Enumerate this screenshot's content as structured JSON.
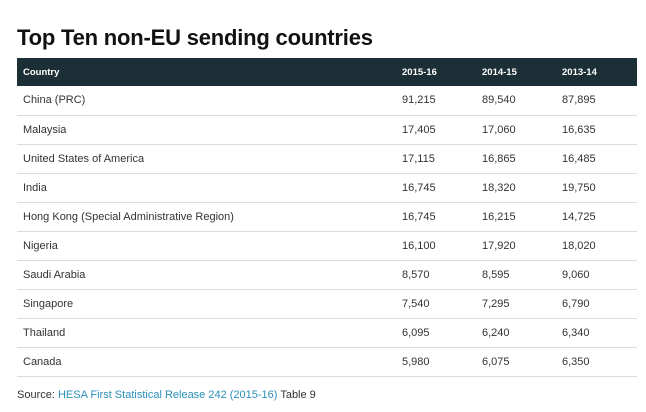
{
  "title": "Top Ten non-EU sending countries",
  "table": {
    "headers": [
      "Country",
      "2015-16",
      "2014-15",
      "2013-14"
    ],
    "rows": [
      [
        "China (PRC)",
        "91,215",
        "89,540",
        "87,895"
      ],
      [
        "Malaysia",
        "17,405",
        "17,060",
        "16,635"
      ],
      [
        "United States of America",
        "17,115",
        "16,865",
        "16,485"
      ],
      [
        "India",
        "16,745",
        "18,320",
        "19,750"
      ],
      [
        "Hong Kong (Special Administrative Region)",
        "16,745",
        "16,215",
        "14,725"
      ],
      [
        "Nigeria",
        "16,100",
        "17,920",
        "18,020"
      ],
      [
        "Saudi Arabia",
        "8,570",
        "8,595",
        "9,060"
      ],
      [
        "Singapore",
        "7,540",
        "7,295",
        "6,790"
      ],
      [
        "Thailand",
        "6,095",
        "6,240",
        "6,340"
      ],
      [
        "Canada",
        "5,980",
        "6,075",
        "6,350"
      ]
    ]
  },
  "source": {
    "prefix": "Source: ",
    "link_text": "HESA First Statistical Release 242 (2015-16)",
    "suffix": " Table 9"
  },
  "colors": {
    "header_bg": "#1c2f36",
    "link": "#2a8fb8"
  }
}
